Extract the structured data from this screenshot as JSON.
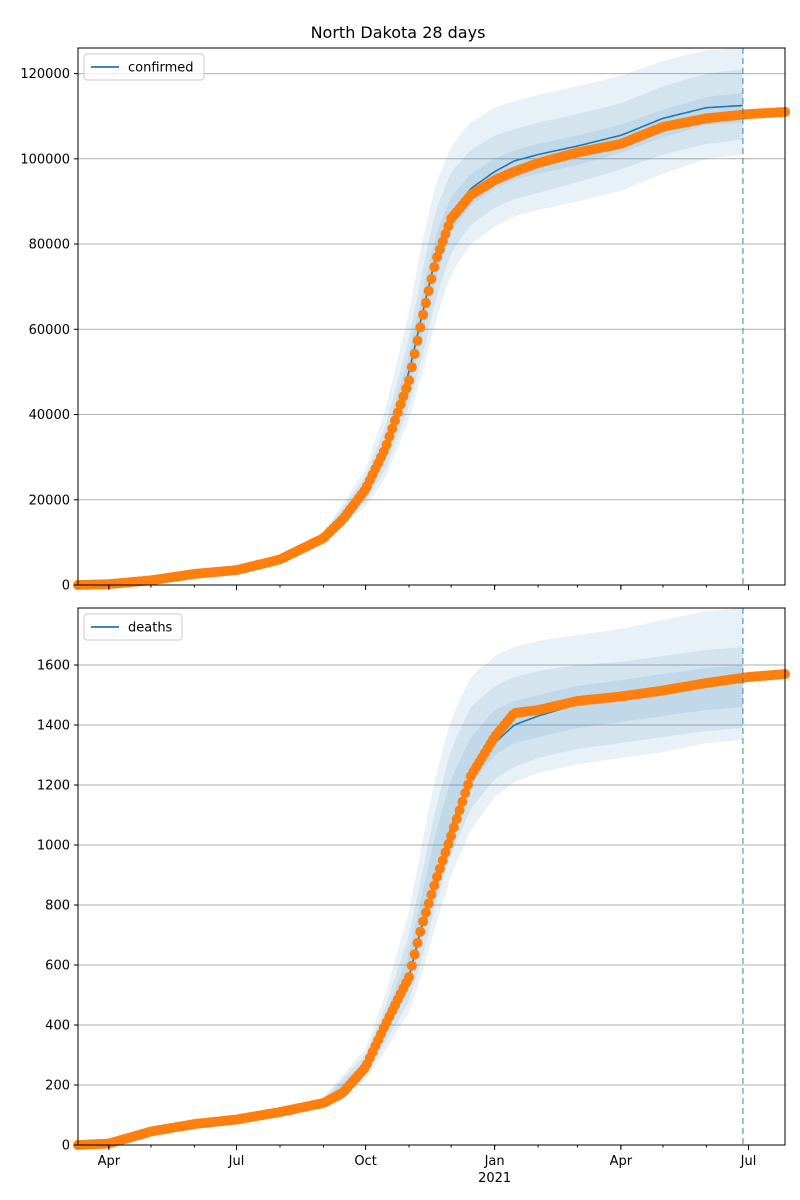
{
  "chart_data": {
    "type": "line",
    "title": "North Dakota 28 days",
    "x_range": [
      "2020-03-10",
      "2021-07-27"
    ],
    "forecast_date": "2021-06-27",
    "x_tick_labels": [
      {
        "date": "2020-04-01",
        "label": "Apr"
      },
      {
        "date": "2020-07-01",
        "label": "Jul"
      },
      {
        "date": "2020-10-01",
        "label": "Oct"
      },
      {
        "date": "2021-01-01",
        "label": "Jan"
      },
      {
        "date": "2021-04-01",
        "label": "Apr"
      },
      {
        "date": "2021-07-01",
        "label": "Jul"
      }
    ],
    "x_year_label": "2021",
    "grid": "horizontal",
    "colors": {
      "model": "#1f77b4",
      "observed": "#ff7f0e",
      "band": "#1f77b4",
      "forecast_line": "#1f77b4",
      "grid": "#b0b0b0"
    },
    "panels": [
      {
        "legend": "confirmed",
        "legend_position": "upper-left",
        "ylim": [
          0,
          126000
        ],
        "yticks": [
          0,
          20000,
          40000,
          60000,
          80000,
          100000,
          120000
        ],
        "model": {
          "x": [
            "2020-03-10",
            "2020-04-01",
            "2020-05-01",
            "2020-06-01",
            "2020-07-01",
            "2020-08-01",
            "2020-09-01",
            "2020-09-15",
            "2020-10-01",
            "2020-10-15",
            "2020-11-01",
            "2020-11-10",
            "2020-11-20",
            "2020-12-01",
            "2020-12-15",
            "2021-01-01",
            "2021-01-15",
            "2021-02-01",
            "2021-03-01",
            "2021-04-01",
            "2021-05-01",
            "2021-06-01",
            "2021-06-27"
          ],
          "y": [
            0,
            200,
            1200,
            2700,
            3500,
            6000,
            11000,
            15500,
            22500,
            32000,
            50000,
            63000,
            77000,
            87000,
            93000,
            97000,
            99500,
            101000,
            103000,
            105500,
            109500,
            112000,
            112500
          ],
          "bands": {
            "x": [
              "2020-09-01",
              "2020-10-01",
              "2020-10-15",
              "2020-11-01",
              "2020-11-10",
              "2020-11-20",
              "2020-12-01",
              "2020-12-15",
              "2021-01-01",
              "2021-01-15",
              "2021-02-01",
              "2021-03-01",
              "2021-04-01",
              "2021-05-01",
              "2021-06-01",
              "2021-06-27"
            ],
            "outer_upper": [
              12500,
              27000,
              41000,
              64000,
              80000,
              94000,
              103000,
              108500,
              112000,
              113500,
              115000,
              117000,
              119500,
              123000,
              125500,
              126000
            ],
            "mid_upper": [
              12000,
              25500,
              37000,
              58000,
              73000,
              88000,
              97000,
              102000,
              105500,
              107000,
              108500,
              110500,
              113000,
              117000,
              120000,
              121000
            ],
            "inner_upper": [
              11500,
              24000,
              34500,
              54000,
              68000,
              82000,
              91000,
              96500,
              100000,
              102000,
              103500,
              105500,
              108000,
              111500,
              114500,
              115500
            ],
            "inner_lower": [
              10500,
              21000,
              29500,
              46000,
              58000,
              72000,
              83000,
              89000,
              93000,
              95000,
              96500,
              98500,
              101500,
              105000,
              108000,
              108500
            ],
            "mid_lower": [
              10000,
              19500,
              27000,
              42000,
              53000,
              67000,
              78000,
              84500,
              88500,
              90500,
              92000,
              94500,
              97500,
              101000,
              103500,
              104500
            ],
            "outer_lower": [
              9500,
              18500,
              25000,
              39000,
              49000,
              62000,
              73000,
              80000,
              84000,
              86500,
              88000,
              90000,
              92500,
              96500,
              100000,
              101000
            ]
          }
        },
        "observed": {
          "x": [
            "2020-03-10",
            "2020-04-01",
            "2020-05-01",
            "2020-06-01",
            "2020-07-01",
            "2020-08-01",
            "2020-09-01",
            "2020-09-15",
            "2020-10-01",
            "2020-10-15",
            "2020-11-01",
            "2020-11-10",
            "2020-11-20",
            "2020-12-01",
            "2020-12-15",
            "2021-01-01",
            "2021-01-15",
            "2021-02-01",
            "2021-03-01",
            "2021-04-01",
            "2021-05-01",
            "2021-06-01",
            "2021-07-01",
            "2021-07-27"
          ],
          "y": [
            0,
            200,
            1100,
            2600,
            3500,
            6000,
            11000,
            15500,
            22500,
            32000,
            48000,
            62000,
            76000,
            86000,
            91500,
            95000,
            97000,
            99000,
            101500,
            103500,
            107500,
            109500,
            110500,
            111000
          ]
        }
      },
      {
        "legend": "deaths",
        "legend_position": "upper-left",
        "ylim": [
          0,
          1790
        ],
        "yticks": [
          0,
          200,
          400,
          600,
          800,
          1000,
          1200,
          1400,
          1600
        ],
        "model": {
          "x": [
            "2020-03-10",
            "2020-04-01",
            "2020-05-01",
            "2020-06-01",
            "2020-07-01",
            "2020-08-01",
            "2020-09-01",
            "2020-09-15",
            "2020-10-01",
            "2020-10-15",
            "2020-11-01",
            "2020-11-10",
            "2020-11-20",
            "2020-12-01",
            "2020-12-15",
            "2021-01-01",
            "2021-01-15",
            "2021-02-01",
            "2021-03-01",
            "2021-04-01",
            "2021-05-01",
            "2021-06-01",
            "2021-06-27"
          ],
          "y": [
            0,
            5,
            45,
            70,
            85,
            110,
            140,
            175,
            255,
            390,
            560,
            730,
            880,
            1060,
            1230,
            1340,
            1400,
            1430,
            1470,
            1495,
            1520,
            1540,
            1555
          ],
          "bands": {
            "x": [
              "2020-09-01",
              "2020-10-01",
              "2020-10-15",
              "2020-11-01",
              "2020-11-10",
              "2020-11-20",
              "2020-12-01",
              "2020-12-15",
              "2021-01-01",
              "2021-01-15",
              "2021-02-01",
              "2021-03-01",
              "2021-04-01",
              "2021-05-01",
              "2021-06-01",
              "2021-06-27"
            ],
            "outer_upper": [
              160,
              320,
              500,
              780,
              1000,
              1230,
              1420,
              1560,
              1630,
              1660,
              1680,
              1700,
              1720,
              1750,
              1780,
              1790
            ],
            "mid_upper": [
              155,
              300,
              460,
              700,
              900,
              1120,
              1320,
              1460,
              1530,
              1560,
              1580,
              1600,
              1610,
              1630,
              1650,
              1660
            ],
            "inner_upper": [
              148,
              280,
              430,
              640,
              830,
              1040,
              1220,
              1360,
              1450,
              1480,
              1500,
              1530,
              1550,
              1570,
              1590,
              1600
            ],
            "inner_lower": [
              135,
              245,
              370,
              530,
              690,
              880,
              1060,
              1200,
              1300,
              1340,
              1360,
              1390,
              1410,
              1430,
              1450,
              1460
            ],
            "mid_lower": [
              130,
              230,
              340,
              480,
              620,
              800,
              970,
              1120,
              1220,
              1260,
              1290,
              1320,
              1340,
              1360,
              1380,
              1390
            ],
            "outer_lower": [
              125,
              215,
              315,
              440,
              570,
              730,
              900,
              1050,
              1160,
              1210,
              1240,
              1270,
              1290,
              1310,
              1340,
              1350
            ]
          }
        },
        "observed": {
          "x": [
            "2020-03-10",
            "2020-04-01",
            "2020-05-01",
            "2020-06-01",
            "2020-07-01",
            "2020-08-01",
            "2020-09-01",
            "2020-09-15",
            "2020-10-01",
            "2020-10-15",
            "2020-11-01",
            "2020-11-10",
            "2020-11-20",
            "2020-12-01",
            "2020-12-15",
            "2021-01-01",
            "2021-01-15",
            "2021-02-01",
            "2021-03-01",
            "2021-04-01",
            "2021-05-01",
            "2021-06-01",
            "2021-07-01",
            "2021-07-27"
          ],
          "y": [
            0,
            5,
            45,
            70,
            85,
            110,
            140,
            175,
            260,
            400,
            560,
            730,
            880,
            1030,
            1230,
            1360,
            1440,
            1450,
            1480,
            1495,
            1515,
            1540,
            1560,
            1570
          ]
        }
      }
    ]
  }
}
